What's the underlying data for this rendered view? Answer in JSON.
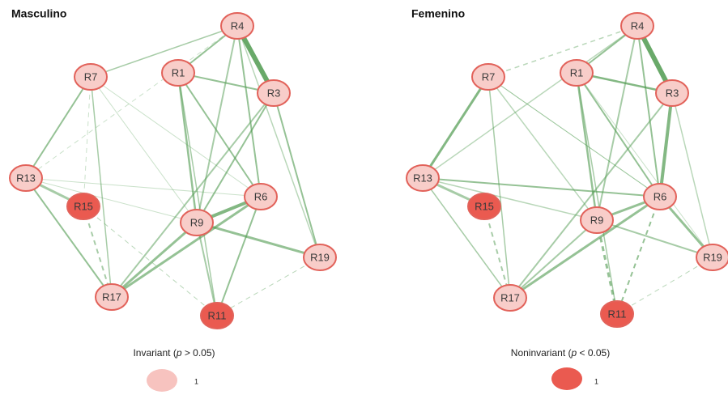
{
  "panels": [
    {
      "title": "Masculino",
      "nodes": [
        "R4",
        "R7",
        "R1",
        "R3",
        "R13",
        "R15",
        "R6",
        "R9",
        "R19",
        "R17",
        "R11"
      ]
    },
    {
      "title": "Femenino",
      "nodes": [
        "R4",
        "R7",
        "R1",
        "R3",
        "R13",
        "R15",
        "R6",
        "R9",
        "R19",
        "R17",
        "R11"
      ]
    }
  ],
  "legends": [
    {
      "label": [
        "Invariant (",
        "p",
        " > 0.05)"
      ],
      "value": 1
    },
    {
      "label": [
        "Noninvariant (",
        "p",
        " < 0.05)"
      ],
      "value": 1
    }
  ]
}
